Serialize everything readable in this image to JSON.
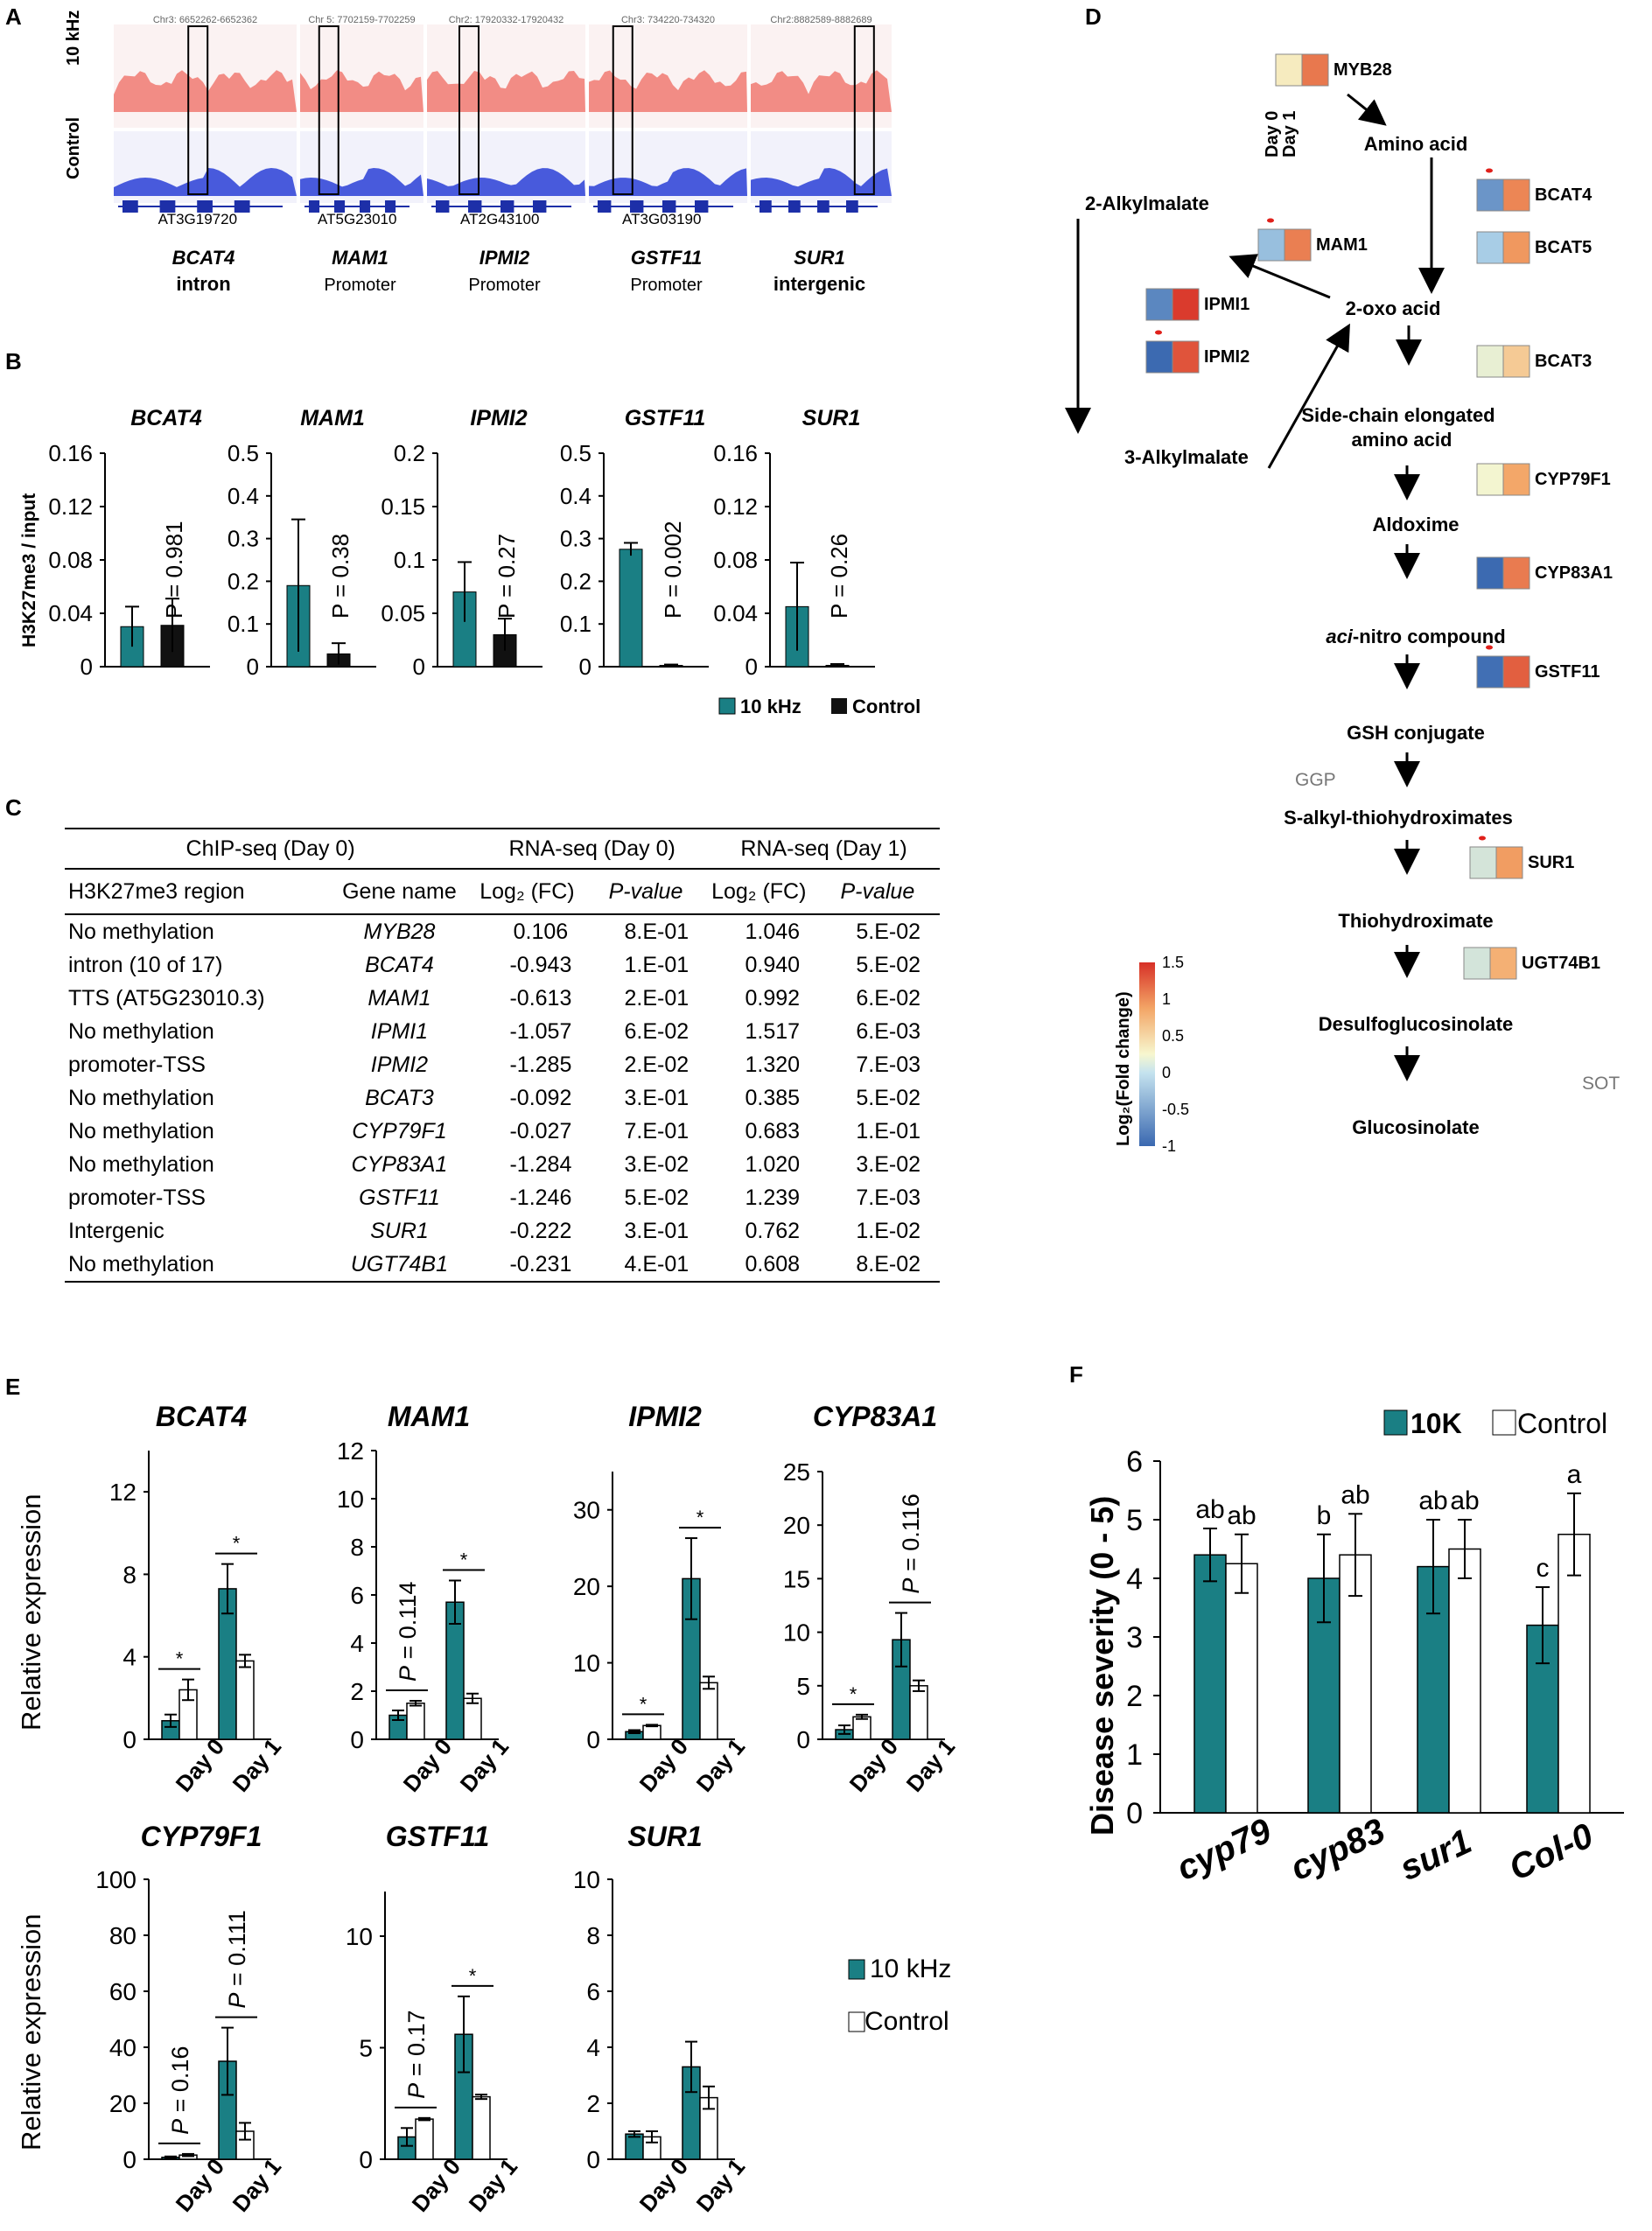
{
  "panel_labels": {
    "a": "A",
    "b": "B",
    "c": "C",
    "d": "D",
    "e": "E",
    "f": "F"
  },
  "panel_a": {
    "row_labels": [
      "10 kHz",
      "Control"
    ],
    "tracks": [
      {
        "coords": "Chr3: 6652262-6652362",
        "gene_id": "AT3G19720",
        "gene": "BCAT4",
        "region": "intron"
      },
      {
        "coords": "Chr 5: 7702159-7702259",
        "gene_id": "AT5G23010",
        "gene": "MAM1",
        "region": "Promoter"
      },
      {
        "coords": "Chr2: 17920332-17920432",
        "gene_id": "AT2G43100",
        "gene": "IPMI2",
        "region": "Promoter"
      },
      {
        "coords": "Chr3: 734220-734320",
        "gene_id": "AT3G03190",
        "gene": "GSTF11",
        "region": "Promoter"
      },
      {
        "coords": "Chr2:8882589-8882689",
        "gene_id": "",
        "gene": "SUR1",
        "region": "intergenic"
      }
    ]
  },
  "panel_b": {
    "ylabel": "H3K27me3 / input",
    "legend": [
      "10 kHz",
      "Control"
    ],
    "colors": {
      "k10": "#1a7f84",
      "control": "#111111"
    }
  },
  "panel_c": {
    "group_headers": [
      "ChIP-seq (Day 0)",
      "RNA-seq (Day 0)",
      "RNA-seq (Day 1)"
    ],
    "columns": [
      "H3K27me3 region",
      "Gene name",
      "Log₂ (FC)",
      "P-value",
      "Log₂ (FC)",
      "P-value"
    ],
    "rows": [
      [
        "No methylation",
        "MYB28",
        "0.106",
        "8.E-01",
        "1.046",
        "5.E-02"
      ],
      [
        "intron (10 of 17)",
        "BCAT4",
        "-0.943",
        "1.E-01",
        "0.940",
        "5.E-02"
      ],
      [
        "TTS (AT5G23010.3)",
        "MAM1",
        "-0.613",
        "2.E-01",
        "0.992",
        "6.E-02"
      ],
      [
        "No methylation",
        "IPMI1",
        "-1.057",
        "6.E-02",
        "1.517",
        "6.E-03"
      ],
      [
        "promoter-TSS",
        "IPMI2",
        "-1.285",
        "2.E-02",
        "1.320",
        "7.E-03"
      ],
      [
        "No methylation",
        "BCAT3",
        "-0.092",
        "3.E-01",
        "0.385",
        "5.E-02"
      ],
      [
        "No methylation",
        "CYP79F1",
        "-0.027",
        "7.E-01",
        "0.683",
        "1.E-01"
      ],
      [
        "No methylation",
        "CYP83A1",
        "-1.284",
        "3.E-02",
        "1.020",
        "3.E-02"
      ],
      [
        "promoter-TSS",
        "GSTF11",
        "-1.246",
        "5.E-02",
        "1.239",
        "7.E-03"
      ],
      [
        "Intergenic",
        "SUR1",
        "-0.222",
        "3.E-01",
        "0.762",
        "1.E-02"
      ],
      [
        "No methylation",
        "UGT74B1",
        "-0.231",
        "4.E-01",
        "0.608",
        "8.E-02"
      ]
    ]
  },
  "panel_d": {
    "day_labels": [
      "Day 0",
      "Day 1"
    ],
    "colorbar": {
      "title": "Log₂(Fold change)",
      "ticks": [
        "1.5",
        "1",
        "0.5",
        "0",
        "-0.5",
        "-1"
      ],
      "range": [
        -1,
        1.5
      ]
    },
    "compounds": [
      "Amino acid",
      "2-Alkylmalate",
      "2-oxo acid",
      "3-Alkylmalate",
      "Side-chain elongated amino acid",
      "Aldoxime",
      "aci-nitro compound",
      "GSH conjugate",
      "S-alkyl-thiohydroximates",
      "Thiohydroximate",
      "Desulfoglucosinolate",
      "Glucosinolate"
    ],
    "other_labels": [
      "GGP",
      "SOT"
    ],
    "genes": [
      {
        "name": "MYB28",
        "day0": 0.106,
        "day1": 1.046,
        "sig": false
      },
      {
        "name": "BCAT4",
        "day0": -0.943,
        "day1": 0.94,
        "sig": true
      },
      {
        "name": "BCAT5",
        "day0": -0.5,
        "day1": 0.8,
        "sig": false
      },
      {
        "name": "MAM1",
        "day0": -0.613,
        "day1": 0.992,
        "sig": true
      },
      {
        "name": "IPMI1",
        "day0": -1.057,
        "day1": 1.517,
        "sig": false
      },
      {
        "name": "IPMI2",
        "day0": -1.285,
        "day1": 1.32,
        "sig": true
      },
      {
        "name": "BCAT3",
        "day0": -0.092,
        "day1": 0.385,
        "sig": false
      },
      {
        "name": "CYP79F1",
        "day0": -0.027,
        "day1": 0.683,
        "sig": false
      },
      {
        "name": "CYP83A1",
        "day0": -1.284,
        "day1": 1.02,
        "sig": false
      },
      {
        "name": "GSTF11",
        "day0": -1.246,
        "day1": 1.239,
        "sig": true
      },
      {
        "name": "SUR1",
        "day0": -0.222,
        "day1": 0.762,
        "sig": true
      },
      {
        "name": "UGT74B1",
        "day0": -0.231,
        "day1": 0.608,
        "sig": false
      }
    ]
  },
  "panel_e_legend": [
    "10 kHz",
    "Control"
  ],
  "panel_f_legend": [
    "10K",
    "Control"
  ],
  "chart_data": [
    {
      "panel": "B",
      "type": "bar",
      "title": "BCAT4",
      "categories": [
        "10 kHz",
        "Control"
      ],
      "values": [
        0.03,
        0.031
      ],
      "errors": [
        0.015,
        0.02
      ],
      "ylim": [
        0,
        0.16
      ],
      "yticks": [
        "0",
        "0.04",
        "0.08",
        "0.12",
        "0.16"
      ],
      "annotation": "P = 0.981"
    },
    {
      "panel": "B",
      "type": "bar",
      "title": "MAM1",
      "categories": [
        "10 kHz",
        "Control"
      ],
      "values": [
        0.19,
        0.03
      ],
      "errors": [
        0.155,
        0.025
      ],
      "ylim": [
        0,
        0.5
      ],
      "yticks": [
        "0",
        "0.1",
        "0.2",
        "0.3",
        "0.4",
        "0.5"
      ],
      "annotation": "P = 0.38"
    },
    {
      "panel": "B",
      "type": "bar",
      "title": "IPMI2",
      "categories": [
        "10 kHz",
        "Control"
      ],
      "values": [
        0.07,
        0.03
      ],
      "errors": [
        0.028,
        0.015
      ],
      "ylim": [
        0,
        0.2
      ],
      "yticks": [
        "0",
        "0.05",
        "0.1",
        "0.15",
        "0.2"
      ],
      "annotation": "P = 0.27"
    },
    {
      "panel": "B",
      "type": "bar",
      "title": "GSTF11",
      "categories": [
        "10 kHz",
        "Control"
      ],
      "values": [
        0.275,
        0.003
      ],
      "errors": [
        0.015,
        0.002
      ],
      "ylim": [
        0,
        0.5
      ],
      "yticks": [
        "0",
        "0.1",
        "0.2",
        "0.3",
        "0.4",
        "0.5"
      ],
      "annotation": "P = 0.002"
    },
    {
      "panel": "B",
      "type": "bar",
      "title": "SUR1",
      "categories": [
        "10 kHz",
        "Control"
      ],
      "values": [
        0.045,
        0.001
      ],
      "errors": [
        0.033,
        0.001
      ],
      "ylim": [
        0,
        0.16
      ],
      "yticks": [
        "0",
        "0.04",
        "0.08",
        "0.12",
        "0.16"
      ],
      "annotation": "P = 0.26"
    },
    {
      "panel": "E",
      "type": "bar",
      "title": "BCAT4",
      "categories": [
        "Day 0",
        "Day 1"
      ],
      "series": [
        {
          "name": "10 kHz",
          "values": [
            0.9,
            7.3
          ],
          "errors": [
            0.3,
            1.2
          ]
        },
        {
          "name": "Control",
          "values": [
            2.4,
            3.8
          ],
          "errors": [
            0.5,
            0.3
          ]
        }
      ],
      "ylim": [
        0,
        14
      ],
      "yticks": [
        "0",
        "4",
        "8",
        "12"
      ],
      "annotations": [
        "*",
        "*"
      ],
      "ylabel": "Relative  expression"
    },
    {
      "panel": "E",
      "type": "bar",
      "title": "MAM1",
      "categories": [
        "Day 0",
        "Day 1"
      ],
      "series": [
        {
          "name": "10 kHz",
          "values": [
            1.0,
            5.7
          ],
          "errors": [
            0.2,
            0.9
          ]
        },
        {
          "name": "Control",
          "values": [
            1.5,
            1.7
          ],
          "errors": [
            0.1,
            0.2
          ]
        }
      ],
      "ylim": [
        0,
        12
      ],
      "yticks": [
        "0",
        "2",
        "4",
        "6",
        "8",
        "10",
        "12"
      ],
      "annotations": [
        "P = 0.114",
        "*"
      ]
    },
    {
      "panel": "E",
      "type": "bar",
      "title": "IPMI2",
      "categories": [
        "Day 0",
        "Day 1"
      ],
      "series": [
        {
          "name": "10 kHz",
          "values": [
            1.0,
            21
          ],
          "errors": [
            0.2,
            5.3
          ]
        },
        {
          "name": "Control",
          "values": [
            1.8,
            7.4
          ],
          "errors": [
            0.1,
            0.8
          ]
        }
      ],
      "ylim": [
        0,
        35
      ],
      "yticks": [
        "0",
        "10",
        "20",
        "30"
      ],
      "annotations": [
        "*",
        "*"
      ]
    },
    {
      "panel": "E",
      "type": "bar",
      "title": "CYP83A1",
      "categories": [
        "Day 0",
        "Day 1"
      ],
      "series": [
        {
          "name": "10 kHz",
          "values": [
            0.9,
            9.3
          ],
          "errors": [
            0.4,
            2.5
          ]
        },
        {
          "name": "Control",
          "values": [
            2.1,
            5.0
          ],
          "errors": [
            0.2,
            0.5
          ]
        }
      ],
      "ylim": [
        0,
        25
      ],
      "yticks": [
        "0",
        "5",
        "10",
        "15",
        "20",
        "25"
      ],
      "annotations": [
        "*",
        "P = 0.116"
      ]
    },
    {
      "panel": "E",
      "type": "bar",
      "title": "CYP79F1",
      "categories": [
        "Day 0",
        "Day 1"
      ],
      "series": [
        {
          "name": "10 kHz",
          "values": [
            0.7,
            35
          ],
          "errors": [
            0.3,
            12
          ]
        },
        {
          "name": "Control",
          "values": [
            1.5,
            10
          ],
          "errors": [
            0.4,
            3
          ]
        }
      ],
      "ylim": [
        0,
        100
      ],
      "yticks": [
        "0",
        "20",
        "40",
        "60",
        "80",
        "100"
      ],
      "annotations": [
        "P = 0.16",
        "P = 0.111"
      ],
      "ylabel": "Relative  expression"
    },
    {
      "panel": "E",
      "type": "bar",
      "title": "GSTF11",
      "categories": [
        "Day 0",
        "Day 1"
      ],
      "series": [
        {
          "name": "10 kHz",
          "values": [
            1.0,
            5.6
          ],
          "errors": [
            0.4,
            1.7
          ]
        },
        {
          "name": "Control",
          "values": [
            1.8,
            2.8
          ],
          "errors": [
            0.05,
            0.1
          ]
        }
      ],
      "ylim": [
        0,
        12
      ],
      "yticks": [
        "0",
        "5",
        "10"
      ],
      "annotations": [
        "P = 0.17",
        "*"
      ]
    },
    {
      "panel": "E",
      "type": "bar",
      "title": "SUR1",
      "categories": [
        "Day 0",
        "Day 1"
      ],
      "series": [
        {
          "name": "10 kHz",
          "values": [
            0.9,
            3.3
          ],
          "errors": [
            0.1,
            0.9
          ]
        },
        {
          "name": "Control",
          "values": [
            0.8,
            2.2
          ],
          "errors": [
            0.2,
            0.4
          ]
        }
      ],
      "ylim": [
        0,
        10
      ],
      "yticks": [
        "0",
        "2",
        "4",
        "6",
        "8",
        "10"
      ],
      "annotations": [
        "",
        ""
      ]
    },
    {
      "panel": "F",
      "type": "bar",
      "title": "",
      "xlabel": "",
      "ylabel": "Disease severity (0 - 5)",
      "categories": [
        "cyp79",
        "cyp83",
        "sur1",
        "Col-0"
      ],
      "series": [
        {
          "name": "10K",
          "values": [
            4.4,
            4.0,
            4.2,
            3.2
          ],
          "errors": [
            0.45,
            0.75,
            0.8,
            0.65
          ],
          "letters": [
            "ab",
            "b",
            "ab",
            "c"
          ]
        },
        {
          "name": "Control",
          "values": [
            4.25,
            4.4,
            4.5,
            4.75
          ],
          "errors": [
            0.5,
            0.7,
            0.5,
            0.7
          ],
          "letters": [
            "ab",
            "ab",
            "ab",
            "a"
          ]
        }
      ],
      "ylim": [
        0,
        6
      ],
      "yticks": [
        "0",
        "1",
        "2",
        "3",
        "4",
        "5",
        "6"
      ]
    }
  ]
}
